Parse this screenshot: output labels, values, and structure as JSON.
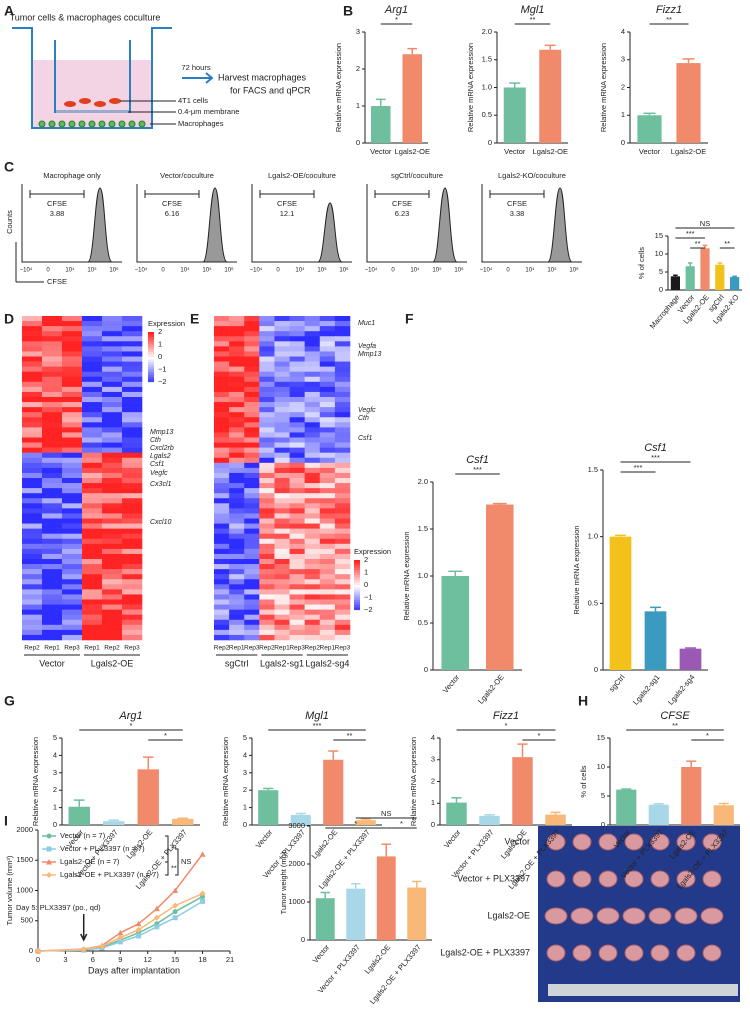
{
  "panel_labels": [
    "A",
    "B",
    "C",
    "D",
    "E",
    "F",
    "G",
    "H",
    "I"
  ],
  "diagram": {
    "title": "Tumor cells & macrophages coculture",
    "time": "72 hours",
    "action": "Harvest macrophages",
    "action2": "for FACS and qPCR",
    "cells": "4T1 cells",
    "membrane": "0.4-μm membrane",
    "macrophages": "Macrophages"
  },
  "flow": {
    "titles": [
      "Macrophage only",
      "Vector/coculture",
      "Lgals2-OE/coculture",
      "sgCtrl/coculture",
      "Lgals2-KO/coculture"
    ],
    "gate": "CFSE",
    "values": [
      3.88,
      6.16,
      12.1,
      6.23,
      3.38
    ],
    "ylabel": "Counts",
    "xlabel": "CFSE",
    "xticks": [
      "−10⁴",
      "0",
      "10⁴",
      "10⁵",
      "10⁶"
    ]
  },
  "heatmaps": [
    {
      "genes": [
        "Mmp13",
        "Cth",
        "Cxcl2rb",
        "Lgals2",
        "Csf1",
        "Vegfc",
        "Cx3cl1",
        "Cxcl10"
      ],
      "legend_title": "Expression",
      "legend_ticks": [
        "2",
        "1",
        "0",
        "−1",
        "−2"
      ],
      "columns": [
        "Rep2",
        "Rep1",
        "Rep3",
        "Rep1",
        "Rep2",
        "Rep3"
      ],
      "groups": [
        "Vector",
        "Lgals2-OE"
      ]
    },
    {
      "genes": [
        "Muc1",
        "Vegfa",
        "Mmp13",
        "Vegfc",
        "Cth",
        "Csf1"
      ],
      "legend_title": "Expression",
      "legend_ticks": [
        "2",
        "1",
        "0",
        "−1",
        "−2"
      ],
      "columns": [
        "Rep2",
        "Rep1",
        "Rep3",
        "Rep2",
        "Rep1",
        "Rep3",
        "Rep2",
        "Rep1",
        "Rep3"
      ],
      "groups": [
        "sgCtrl",
        "Lgals2-sg1",
        "Lgals2-sg4"
      ]
    }
  ],
  "photo": {
    "rows": [
      "Vector",
      "Vector + PLX3397",
      "Lgals2-OE",
      "Lgals2-OE + PLX3397"
    ]
  },
  "chart_data": [
    {
      "type": "bar",
      "title": "Arg1",
      "ylabel": "Relative mRNA expression",
      "categories": [
        "Vector",
        "Lgals2-OE"
      ],
      "values": [
        1.0,
        2.4
      ],
      "errors": [
        0.18,
        0.15
      ],
      "colors": [
        "#6dbf9e",
        "#f08a6a"
      ],
      "ylim": [
        0,
        3
      ],
      "yticks": [
        0,
        1,
        2,
        3
      ],
      "significance": [
        "*"
      ]
    },
    {
      "type": "bar",
      "title": "Mgl1",
      "ylabel": "Relative mRNA expression",
      "categories": [
        "Vector",
        "Lgals2-OE"
      ],
      "values": [
        1.0,
        1.68
      ],
      "errors": [
        0.08,
        0.08
      ],
      "colors": [
        "#6dbf9e",
        "#f08a6a"
      ],
      "ylim": [
        0,
        2
      ],
      "yticks": [
        0,
        0.5,
        {
          "value": 1,
          "label": "1.0"
        },
        1.5,
        {
          "value": 2,
          "label": "2.0"
        }
      ],
      "significance": [
        "**"
      ]
    },
    {
      "type": "bar",
      "title": "Fizz1",
      "ylabel": "Relative mRNA expression",
      "categories": [
        "Vector",
        "Lgals2-OE"
      ],
      "values": [
        1.0,
        2.88
      ],
      "errors": [
        0.07,
        0.15
      ],
      "colors": [
        "#6dbf9e",
        "#f08a6a"
      ],
      "ylim": [
        0,
        4
      ],
      "yticks": [
        0,
        1,
        2,
        3,
        4
      ],
      "significance": [
        "**"
      ]
    },
    {
      "type": "bar",
      "ylabel": "% of cells",
      "categories": [
        "Macrophage",
        "Vector",
        "Lgals2-OE",
        "sgCtrl",
        "Lgals2-KO"
      ],
      "values": [
        3.8,
        6.6,
        11.6,
        7.0,
        3.6
      ],
      "errors": [
        0.3,
        0.9,
        0.8,
        0.5,
        0.2
      ],
      "colors": [
        "#1a1a1a",
        "#6dbf9e",
        "#f08a6a",
        "#f2c21b",
        "#3a9ac0"
      ],
      "ylim": [
        0,
        15
      ],
      "yticks": [
        0,
        5,
        10,
        15
      ],
      "significance": [
        "NS",
        "***",
        "**",
        "**"
      ]
    },
    {
      "type": "bar",
      "title": "Csf1",
      "ylabel": "Relative mRNA expression",
      "categories": [
        "Vector",
        "Lgals2-OE"
      ],
      "values": [
        1.0,
        1.76
      ],
      "errors": [
        0.05,
        0.01
      ],
      "colors": [
        "#6dbf9e",
        "#f08a6a"
      ],
      "ylim": [
        0,
        2
      ],
      "yticks": [
        0,
        0.5,
        {
          "value": 1,
          "label": "1.0"
        },
        1.5,
        {
          "value": 2,
          "label": "2.0"
        }
      ],
      "significance": [
        "***"
      ]
    },
    {
      "type": "bar",
      "title": "Csf1",
      "ylabel": "Relative mRNA expression",
      "categories": [
        "sgCtrl",
        "Lgals2-sg1",
        "Lgals2-sg4"
      ],
      "values": [
        1.0,
        0.44,
        0.16
      ],
      "errors": [
        0.01,
        0.03,
        0.005
      ],
      "colors": [
        "#f2c21b",
        "#3a9ac0",
        "#9b59b6"
      ],
      "ylim": [
        0,
        1.5
      ],
      "yticks": [
        0,
        0.5,
        {
          "value": 1,
          "label": "1.0"
        },
        1.5
      ],
      "significance": [
        "***",
        "***"
      ]
    },
    {
      "type": "bar",
      "title": "Arg1",
      "ylabel": "Relative mRNA expression",
      "categories": [
        "Vector",
        "Vector + PLX3397",
        "Lgals2-OE",
        "Lgals2-OE + PLX3397"
      ],
      "values": [
        1.05,
        0.22,
        3.2,
        0.35
      ],
      "errors": [
        0.38,
        0.06,
        0.7,
        0.04
      ],
      "colors": [
        "#6dbf9e",
        "#a8d8e8",
        "#f08a6a",
        "#f8b878"
      ],
      "ylim": [
        0,
        5
      ],
      "yticks": [
        0,
        1,
        2,
        3,
        4,
        5
      ],
      "significance": [
        "*",
        "*"
      ]
    },
    {
      "type": "bar",
      "title": "Mgl1",
      "ylabel": "Relative mRNA expression",
      "categories": [
        "Vector",
        "Vector + PLX3397",
        "Lgals2-OE",
        "Lgals2-OE + PLX3397"
      ],
      "values": [
        2.0,
        0.58,
        3.75,
        0.28
      ],
      "errors": [
        0.1,
        0.08,
        0.5,
        0.06
      ],
      "colors": [
        "#6dbf9e",
        "#a8d8e8",
        "#f08a6a",
        "#f8b878"
      ],
      "ylim": [
        0,
        5
      ],
      "yticks": [
        0,
        1,
        2,
        3,
        4,
        5
      ],
      "significance": [
        "***",
        "**"
      ]
    },
    {
      "type": "bar",
      "title": "Fizz1",
      "ylabel": "Relative mRNA expression",
      "categories": [
        "Vector",
        "Vector + PLX3397",
        "Lgals2-OE",
        "Lgals2-OE + PLX3397"
      ],
      "values": [
        1.03,
        0.42,
        3.12,
        0.48
      ],
      "errors": [
        0.22,
        0.05,
        0.6,
        0.1
      ],
      "colors": [
        "#6dbf9e",
        "#a8d8e8",
        "#f08a6a",
        "#f8b878"
      ],
      "ylim": [
        0,
        4
      ],
      "yticks": [
        0,
        1,
        2,
        3,
        4
      ],
      "significance": [
        "*",
        "*"
      ]
    },
    {
      "type": "bar",
      "title": "CFSE",
      "ylabel": "% of cells",
      "categories": [
        "Vector",
        "Vector + PLX3397",
        "Lgals2-OE",
        "Lgals2-OE + PLX3397"
      ],
      "values": [
        6.1,
        3.5,
        10,
        3.4
      ],
      "errors": [
        0.1,
        0.15,
        1,
        0.3
      ],
      "colors": [
        "#6dbf9e",
        "#a8d8e8",
        "#f08a6a",
        "#f8b878"
      ],
      "ylim": [
        0,
        15
      ],
      "yticks": [
        0,
        5,
        10,
        15
      ],
      "significance": [
        "**",
        "*"
      ]
    },
    {
      "type": "line",
      "xlabel": "Days after implantation",
      "ylabel": "Tumor volume (mm³)",
      "x": [
        0,
        5,
        7,
        9,
        11,
        13,
        15,
        18
      ],
      "xlim": [
        0,
        21
      ],
      "xticks": [
        0,
        3,
        6,
        9,
        12,
        15,
        18,
        21
      ],
      "ylim": [
        0,
        2000
      ],
      "yticks": [
        0,
        500,
        1000,
        1500,
        2000
      ],
      "series": [
        {
          "name": "Vector (n = 7)",
          "color": "#6dbf9e",
          "values": [
            0,
            20,
            60,
            180,
            300,
            450,
            650,
            900
          ]
        },
        {
          "name": "Vector + PLX3397 (n = 7)",
          "color": "#8ccde3",
          "values": [
            0,
            15,
            50,
            150,
            250,
            400,
            550,
            820
          ]
        },
        {
          "name": "Lgals2-OE (n = 7)",
          "color": "#f08a6a",
          "values": [
            0,
            30,
            90,
            300,
            450,
            700,
            1000,
            1600
          ]
        },
        {
          "name": "Lgals2-OE + PLX3397 (n = 7)",
          "color": "#f8b878",
          "values": [
            0,
            25,
            80,
            220,
            350,
            550,
            750,
            950
          ]
        }
      ],
      "annotation": "Day 5: PLX3397 (po., qd)",
      "significance": [
        "**",
        "NS",
        "**"
      ]
    },
    {
      "type": "bar",
      "ylabel": "Tumor weight (mg)",
      "categories": [
        "Vector",
        "Vector + PLX3397",
        "Lgals2-OE",
        "Lgals2-OE + PLX3397"
      ],
      "values": [
        1100,
        1350,
        2200,
        1380
      ],
      "errors": [
        150,
        130,
        320,
        160
      ],
      "colors": [
        "#6dbf9e",
        "#a8d8e8",
        "#f08a6a",
        "#f8b878"
      ],
      "ylim": [
        0,
        3000
      ],
      "yticks": [
        0,
        1000,
        2000,
        3000
      ],
      "significance": [
        "NS",
        "*",
        "*"
      ]
    }
  ]
}
